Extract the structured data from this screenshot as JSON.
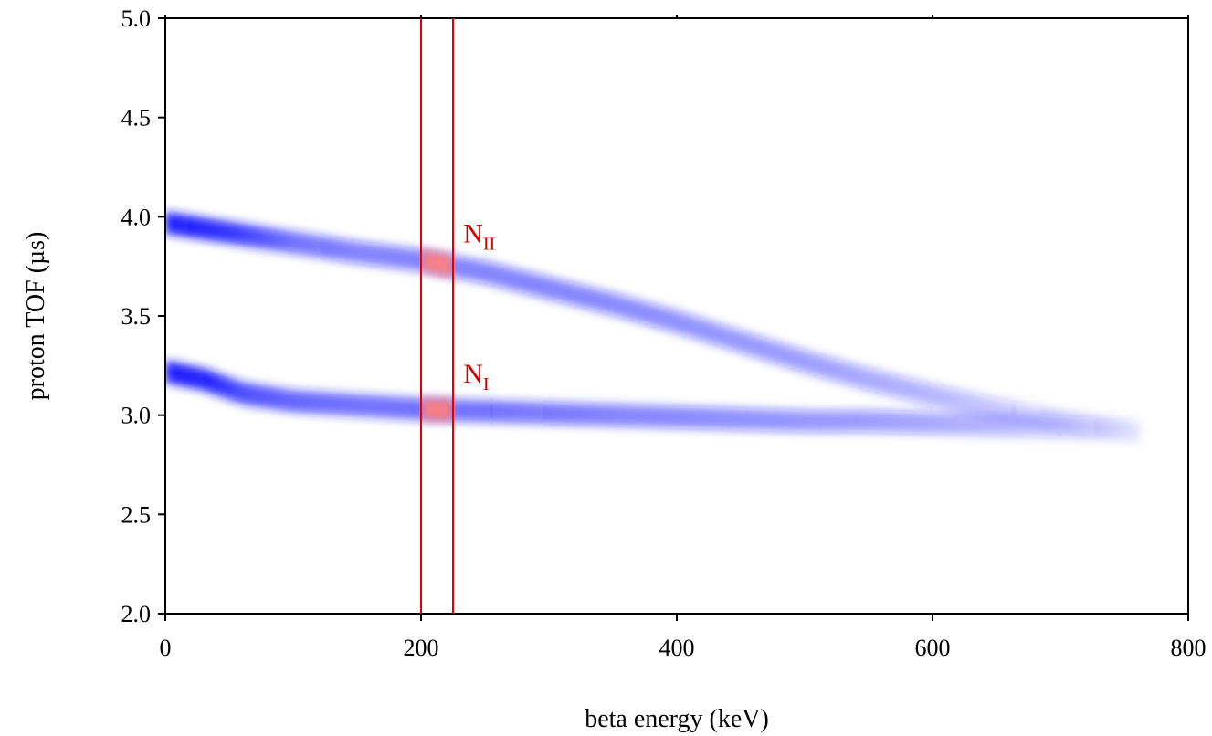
{
  "chart_data": {
    "type": "heatmap",
    "title": "",
    "xlabel": "beta energy (keV)",
    "ylabel": "proton TOF (µs)",
    "xlim": [
      0,
      800
    ],
    "ylim": [
      2.0,
      5.0
    ],
    "x_ticks": [
      0,
      200,
      400,
      600,
      800
    ],
    "x_tick_labels": [
      "0",
      "200",
      "400",
      "600",
      "800"
    ],
    "y_ticks": [
      2.0,
      2.5,
      3.0,
      3.5,
      4.0,
      4.5,
      5.0
    ],
    "y_tick_labels": [
      "2.0",
      "2.5",
      "3.0",
      "3.5",
      "4.0",
      "4.5",
      "5.0"
    ],
    "grid": false,
    "colors": {
      "band": "#1a1aff",
      "cut": "#e00000",
      "selected": "#ff8080"
    },
    "bands": [
      {
        "label": "N",
        "subscript": "II",
        "ridge": [
          [
            0,
            3.97
          ],
          [
            50,
            3.92
          ],
          [
            100,
            3.87
          ],
          [
            150,
            3.82
          ],
          [
            200,
            3.78
          ],
          [
            250,
            3.72
          ],
          [
            300,
            3.64
          ],
          [
            350,
            3.56
          ],
          [
            400,
            3.47
          ],
          [
            450,
            3.37
          ],
          [
            500,
            3.27
          ],
          [
            550,
            3.18
          ],
          [
            600,
            3.1
          ],
          [
            650,
            3.03
          ],
          [
            700,
            2.97
          ],
          [
            760,
            2.92
          ]
        ],
        "intensity": [
          1.0,
          0.85,
          0.6,
          0.5,
          0.5,
          0.5,
          0.5,
          0.48,
          0.45,
          0.42,
          0.4,
          0.35,
          0.3,
          0.22,
          0.15,
          0.05
        ]
      },
      {
        "label": "N",
        "subscript": "I",
        "ridge": [
          [
            0,
            3.22
          ],
          [
            30,
            3.18
          ],
          [
            60,
            3.11
          ],
          [
            100,
            3.07
          ],
          [
            150,
            3.05
          ],
          [
            200,
            3.03
          ],
          [
            250,
            3.02
          ],
          [
            300,
            3.01
          ],
          [
            350,
            3.0
          ],
          [
            400,
            2.99
          ],
          [
            450,
            2.98
          ],
          [
            500,
            2.97
          ],
          [
            550,
            2.97
          ],
          [
            600,
            2.96
          ],
          [
            650,
            2.95
          ],
          [
            700,
            2.94
          ],
          [
            760,
            2.92
          ]
        ],
        "intensity": [
          1.0,
          0.95,
          0.75,
          0.65,
          0.6,
          0.6,
          0.6,
          0.55,
          0.5,
          0.48,
          0.45,
          0.42,
          0.4,
          0.35,
          0.3,
          0.2,
          0.05
        ]
      }
    ],
    "cuts": [
      200,
      225
    ]
  }
}
